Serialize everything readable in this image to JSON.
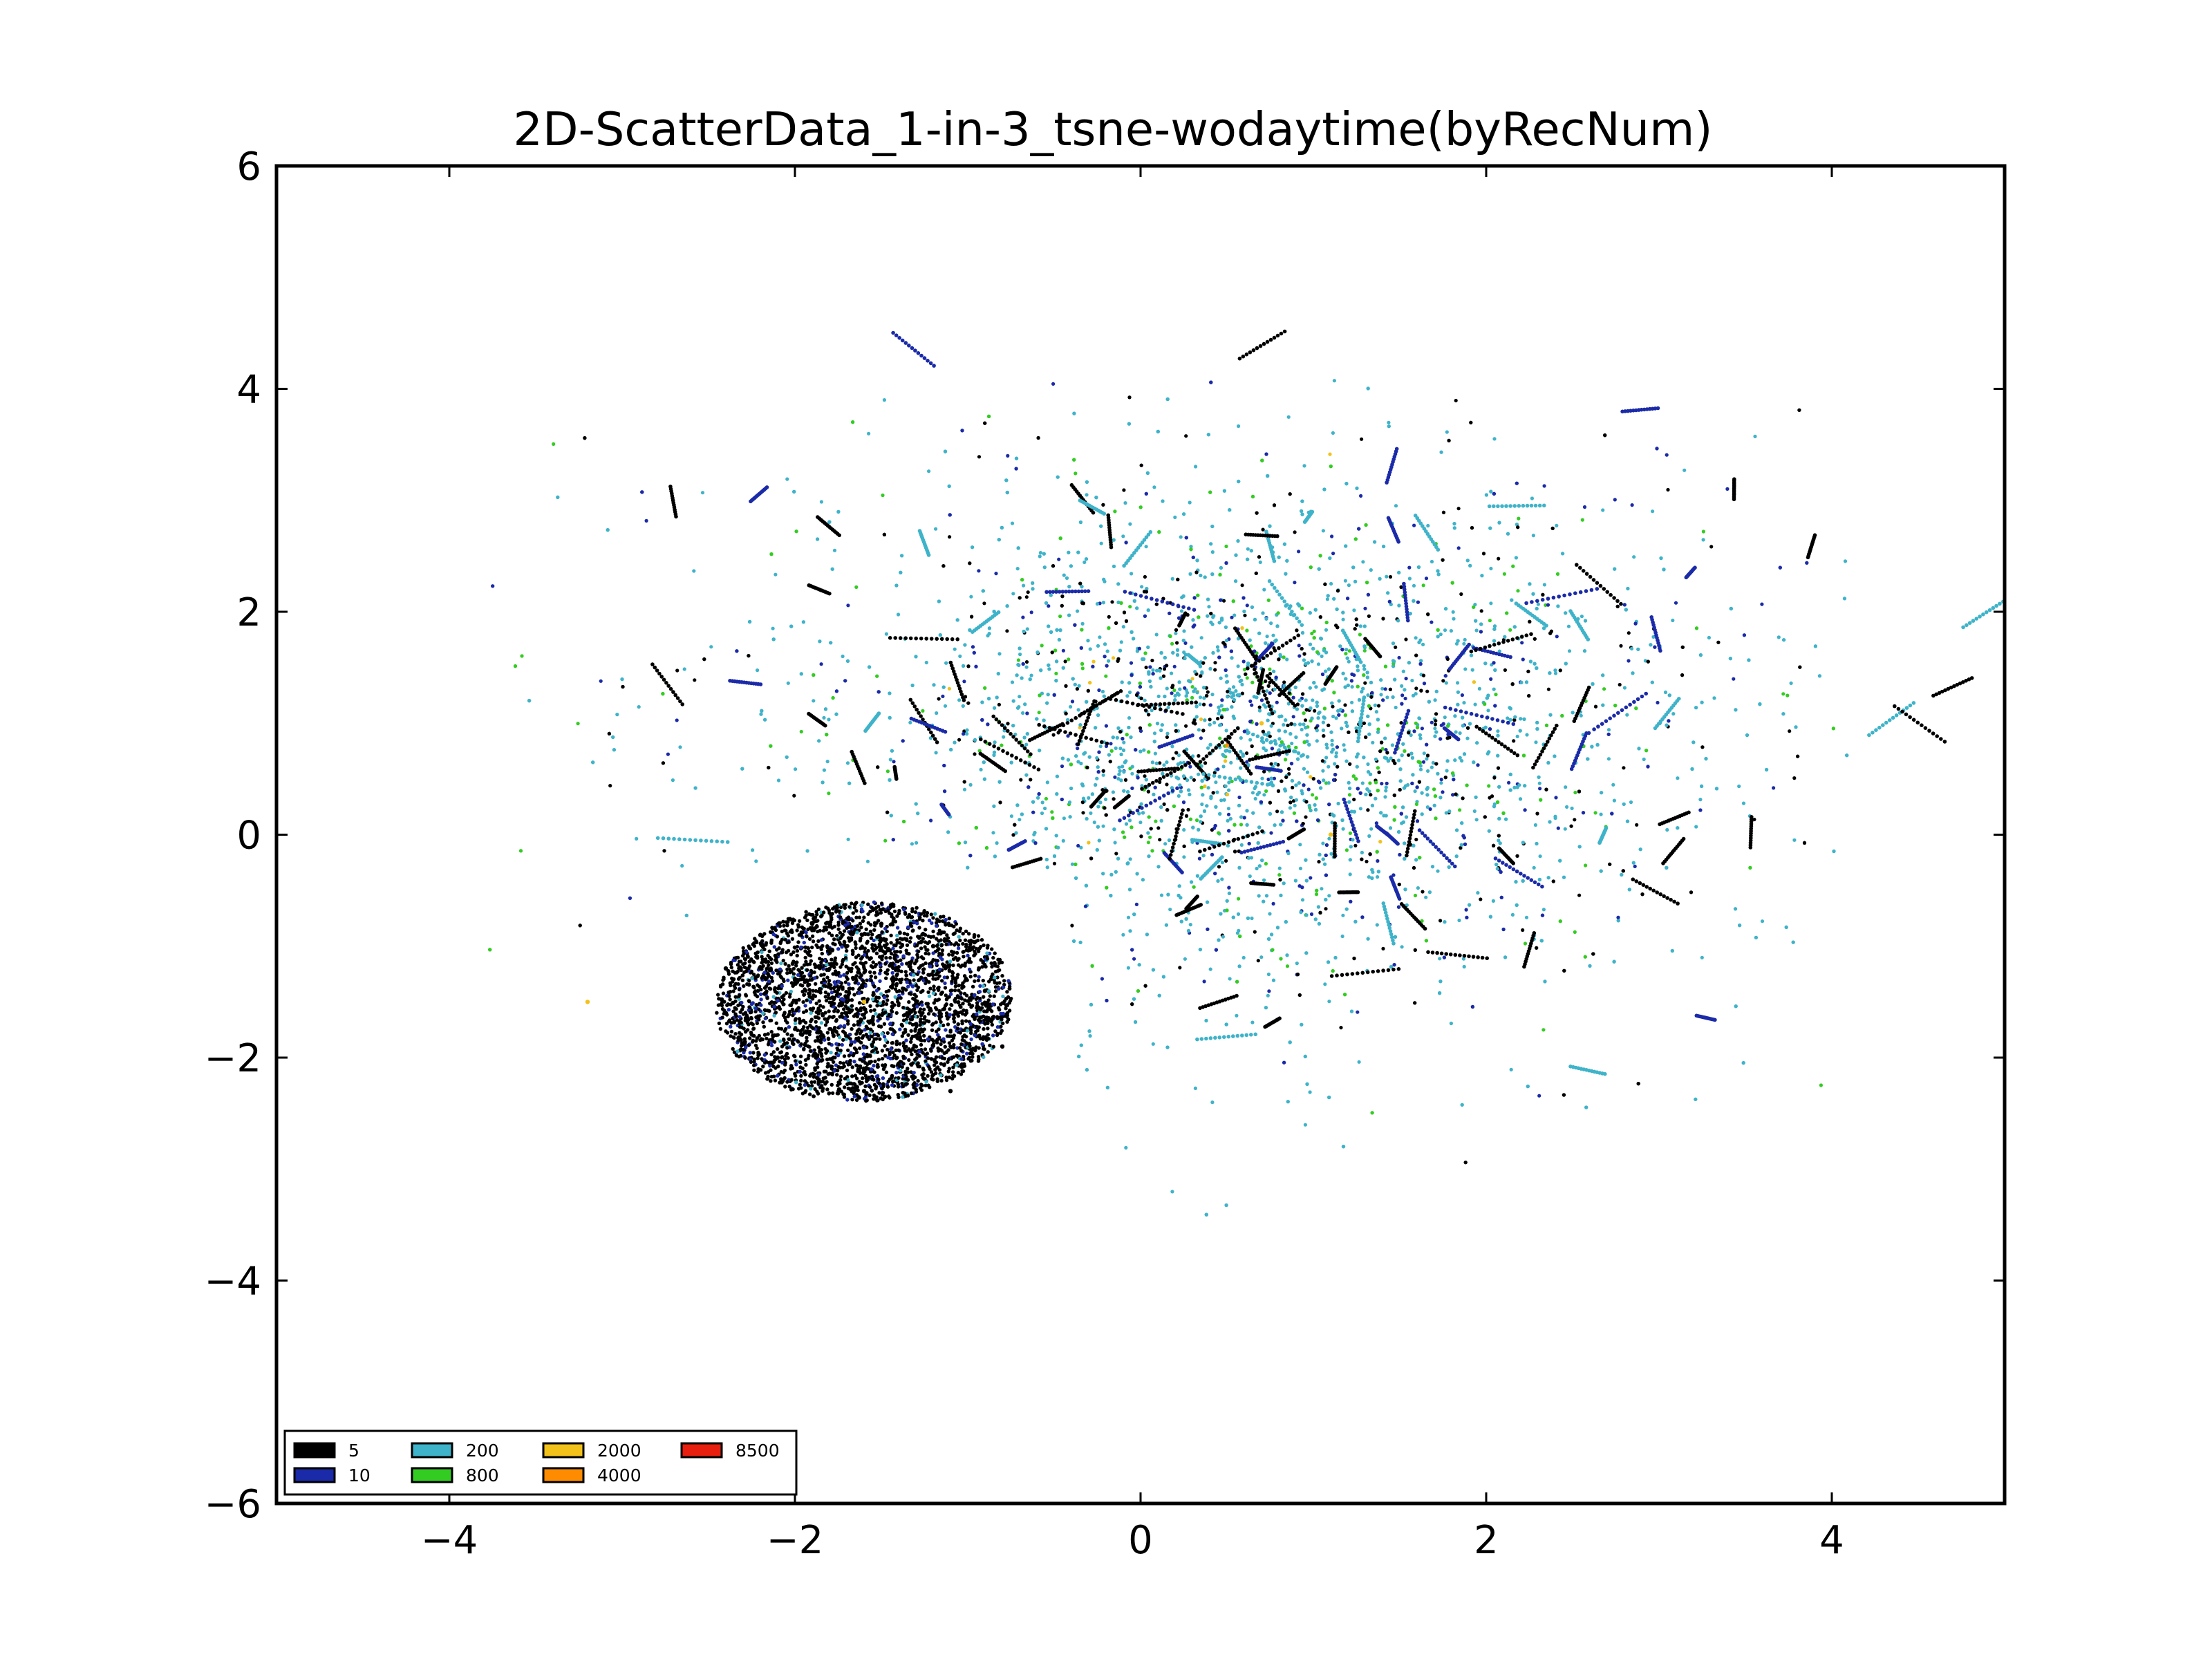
{
  "chart_data": {
    "type": "scatter",
    "title": "2D-ScatterData_1-in-3_tsne-wodaytime(byRecNum)",
    "xlabel": "",
    "ylabel": "",
    "xlim": [
      -5,
      5
    ],
    "ylim": [
      -6,
      6
    ],
    "x_ticks": [
      -4,
      -2,
      0,
      2,
      4
    ],
    "x_tick_labels": [
      "−4",
      "−2",
      "0",
      "2",
      "4"
    ],
    "y_ticks": [
      6,
      4,
      2,
      0,
      -2,
      -4,
      -6
    ],
    "y_tick_labels": [
      "6",
      "4",
      "2",
      "0",
      "−2",
      "−4",
      "−6"
    ],
    "grid": false,
    "legend_position": "lower-left",
    "legend": [
      {
        "label": "5",
        "color": "#000000"
      },
      {
        "label": "10",
        "color": "#1a2aa8"
      },
      {
        "label": "200",
        "color": "#3eb3c9"
      },
      {
        "label": "800",
        "color": "#33cc22"
      },
      {
        "label": "2000",
        "color": "#f2c21b"
      },
      {
        "label": "4000",
        "color": "#ff8c00"
      },
      {
        "label": "8500",
        "color": "#e81e0e"
      }
    ],
    "series": [
      {
        "name": "5",
        "color": "#000000",
        "cluster": "dense elliptical cluster centered near (-1.6, -1.5) plus scattered dashes",
        "points": [
          [
            -2.4,
            -1.2
          ],
          [
            -2.2,
            -0.9
          ],
          [
            -1.9,
            -0.8
          ],
          [
            -1.5,
            -0.8
          ],
          [
            -1.2,
            -1.0
          ],
          [
            -0.9,
            -1.4
          ],
          [
            -0.8,
            -1.9
          ],
          [
            -1.1,
            -2.3
          ],
          [
            -1.6,
            -2.3
          ],
          [
            -2.1,
            -2.0
          ],
          [
            -2.4,
            -1.6
          ],
          [
            -1.7,
            -1.5
          ],
          [
            -1.3,
            -1.7
          ],
          [
            -2.0,
            -1.3
          ]
        ]
      },
      {
        "name": "10",
        "color": "#1a2aa8",
        "cluster": "scattered throughout main cloud",
        "points": []
      },
      {
        "name": "200",
        "color": "#3eb3c9",
        "cluster": "main cloud centered near (0.7, 0.9)",
        "points": []
      },
      {
        "name": "800",
        "color": "#33cc22",
        "cluster": "main cloud core",
        "points": []
      },
      {
        "name": "2000",
        "color": "#f2c21b",
        "cluster": "sparse",
        "points": [
          [
            -1.6,
            -1.5
          ],
          [
            0.7,
            1.0
          ],
          [
            1.1,
            0.0
          ],
          [
            -3.2,
            -1.5
          ]
        ]
      },
      {
        "name": "4000",
        "color": "#ff8c00",
        "cluster": "very sparse",
        "points": [
          [
            0.5,
            0.8
          ]
        ]
      },
      {
        "name": "8500",
        "color": "#e81e0e",
        "cluster": "none visible",
        "points": []
      }
    ],
    "main_cloud": {
      "center": [
        0.7,
        0.9
      ],
      "x_range": [
        -3.9,
        4.1
      ],
      "y_range": [
        -3.6,
        4.1
      ]
    },
    "inner_cluster": {
      "center": [
        -1.6,
        -1.5
      ],
      "x_range": [
        -2.5,
        -0.8
      ],
      "y_range": [
        -2.4,
        -0.6
      ]
    }
  }
}
